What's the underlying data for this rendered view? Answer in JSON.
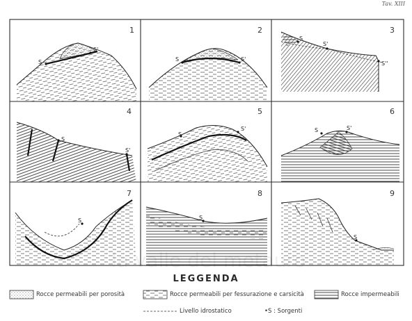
{
  "plate_label": "Tav. XIII",
  "panels": [
    {
      "number": "1",
      "springs": [
        "S",
        "S'"
      ]
    },
    {
      "number": "2",
      "springs": [
        "S",
        "S'"
      ]
    },
    {
      "number": "3",
      "springs": [
        "S",
        "S'",
        "S''"
      ]
    },
    {
      "number": "4",
      "springs": [
        "S",
        "S'"
      ]
    },
    {
      "number": "5",
      "springs": [
        "S",
        "S'"
      ]
    },
    {
      "number": "6",
      "springs": [
        "S",
        "S'"
      ]
    },
    {
      "number": "7",
      "springs": [
        "S"
      ]
    },
    {
      "number": "8",
      "springs": [
        "S"
      ]
    },
    {
      "number": "9",
      "springs": [
        "S"
      ]
    }
  ],
  "legend": {
    "title": "LEGGENDA",
    "items": [
      {
        "label": "Rocce permeabili per porosità"
      },
      {
        "label": "Rocce permeabili per fessurazione e carsicità"
      },
      {
        "label": "Rocce impermeabili"
      },
      {
        "label": "Livello idrostatico"
      },
      {
        "label": "•S : Sorgenti"
      }
    ]
  },
  "watermark": "la valle del metauro"
}
